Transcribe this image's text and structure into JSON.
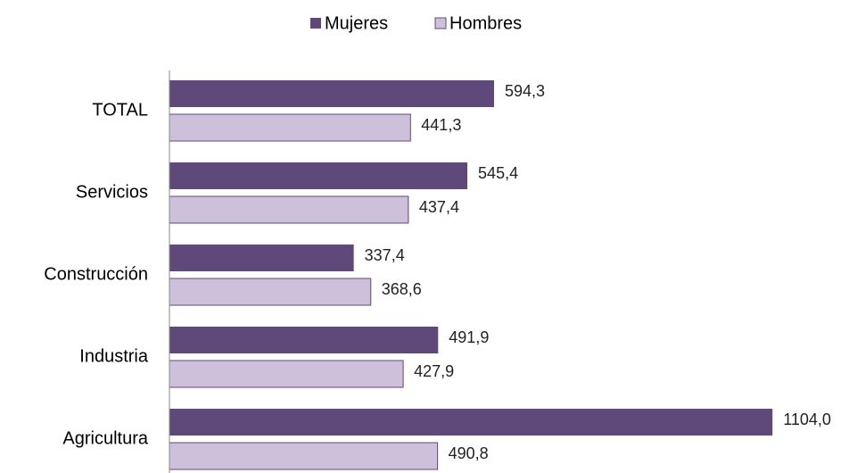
{
  "chart_data": {
    "type": "hbar",
    "categories": [
      "TOTAL",
      "Servicios",
      "Construcción",
      "Industria",
      "Agricultura"
    ],
    "series": [
      {
        "name": "Mujeres",
        "color": "#5f497a",
        "values": [
          594.3,
          545.4,
          337.4,
          491.9,
          1104.0
        ],
        "value_labels": [
          "594,3",
          "545,4",
          "337,4",
          "491,9",
          "1104,0"
        ]
      },
      {
        "name": "Hombres",
        "color": "#ccc0da",
        "values": [
          441.3,
          437.4,
          368.6,
          427.9,
          490.8
        ],
        "value_labels": [
          "441,3",
          "437,4",
          "368,6",
          "427,9",
          "490,8"
        ]
      }
    ],
    "xlim": [
      0,
      1200
    ],
    "legend": "top"
  }
}
